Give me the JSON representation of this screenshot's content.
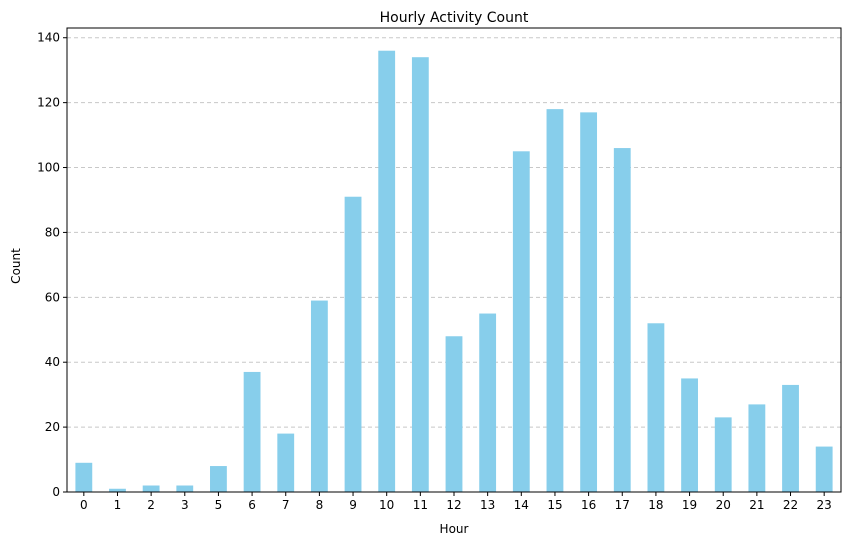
{
  "chart_data": {
    "type": "bar",
    "title": "Hourly Activity Count",
    "xlabel": "Hour",
    "ylabel": "Count",
    "categories": [
      "0",
      "1",
      "2",
      "3",
      "5",
      "6",
      "7",
      "8",
      "9",
      "10",
      "11",
      "12",
      "13",
      "14",
      "15",
      "16",
      "17",
      "18",
      "19",
      "20",
      "21",
      "22",
      "23"
    ],
    "values": [
      9,
      1,
      2,
      2,
      8,
      37,
      18,
      59,
      91,
      136,
      134,
      48,
      55,
      105,
      118,
      117,
      106,
      52,
      35,
      23,
      27,
      33,
      14
    ],
    "ylim": [
      0,
      143
    ],
    "yticks": [
      0,
      20,
      40,
      60,
      80,
      100,
      120,
      140
    ],
    "grid": "y-dashed",
    "bar_color": "#87ceeb",
    "grid_color": "#c8c8c8"
  }
}
